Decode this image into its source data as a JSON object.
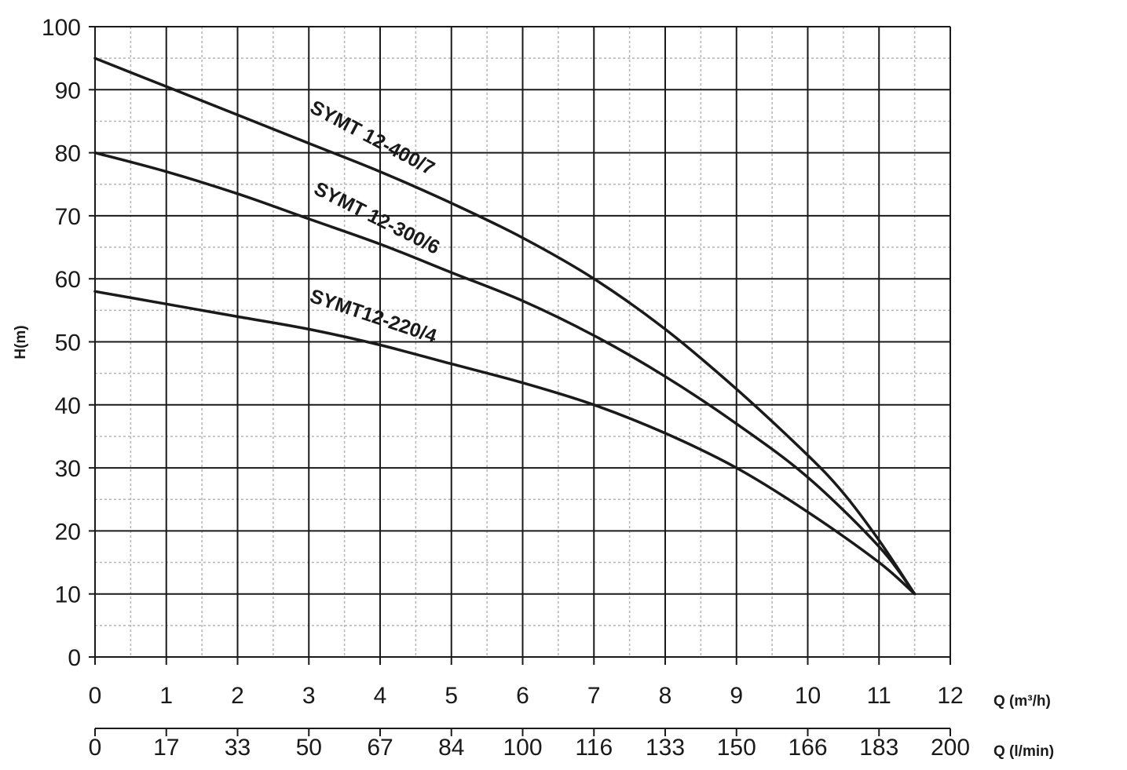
{
  "chart_data": {
    "type": "line",
    "title": "",
    "ylabel": "H(m)",
    "xlabel": "Q (m³/h)",
    "x2label": "Q (l/min)",
    "xlim": [
      0,
      12
    ],
    "ylim": [
      0,
      100
    ],
    "x_ticks": [
      "0",
      "1",
      "2",
      "3",
      "4",
      "5",
      "6",
      "7",
      "8",
      "9",
      "10",
      "11",
      "12"
    ],
    "x2_ticks": [
      "0",
      "17",
      "33",
      "50",
      "67",
      "84",
      "100",
      "116",
      "133",
      "150",
      "166",
      "183",
      "200"
    ],
    "y_ticks": [
      "0",
      "10",
      "20",
      "30",
      "40",
      "50",
      "60",
      "70",
      "80",
      "90",
      "100"
    ],
    "grid": true,
    "line_color": "#1a1a1a",
    "series": [
      {
        "name": "SYMT 12-400/7",
        "points": [
          [
            0,
            95
          ],
          [
            1,
            90.5
          ],
          [
            2,
            86
          ],
          [
            3,
            81.5
          ],
          [
            4,
            77
          ],
          [
            5,
            72
          ],
          [
            6,
            66.5
          ],
          [
            7,
            60
          ],
          [
            8,
            52
          ],
          [
            9,
            42.5
          ],
          [
            10,
            32
          ],
          [
            10.5,
            26
          ],
          [
            11,
            18.5
          ],
          [
            11.5,
            10
          ]
        ]
      },
      {
        "name": "SYMT 12-300/6",
        "points": [
          [
            0,
            80
          ],
          [
            1,
            77
          ],
          [
            2,
            73.5
          ],
          [
            3,
            69.5
          ],
          [
            4,
            65.5
          ],
          [
            5,
            61
          ],
          [
            6,
            56.5
          ],
          [
            7,
            51
          ],
          [
            8,
            44.5
          ],
          [
            9,
            37
          ],
          [
            10,
            28.5
          ],
          [
            11,
            17.5
          ],
          [
            11.5,
            10
          ]
        ]
      },
      {
        "name": "SYMT12-220/4",
        "points": [
          [
            0,
            58
          ],
          [
            1,
            56
          ],
          [
            2,
            54
          ],
          [
            3,
            52
          ],
          [
            4,
            49.5
          ],
          [
            5,
            46.5
          ],
          [
            6,
            43.5
          ],
          [
            7,
            40
          ],
          [
            8,
            35.5
          ],
          [
            9,
            30
          ],
          [
            10,
            23
          ],
          [
            11,
            15
          ],
          [
            11.5,
            10
          ]
        ]
      }
    ]
  }
}
